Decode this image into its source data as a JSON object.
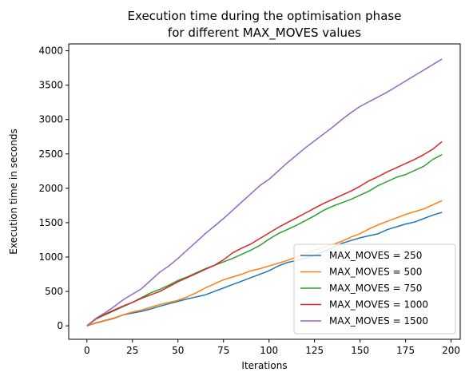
{
  "chart_data": {
    "type": "line",
    "title_lines": [
      "Execution time during the optimisation phase",
      "for different MAX_MOVES values"
    ],
    "xlabel": "Iterations",
    "ylabel": "Execution time in seconds",
    "xlim": [
      -10,
      205
    ],
    "ylim": [
      -196,
      4100
    ],
    "xticks": [
      0,
      25,
      50,
      75,
      100,
      125,
      150,
      175,
      200
    ],
    "yticks": [
      0,
      500,
      1000,
      1500,
      2000,
      2500,
      3000,
      3500,
      4000
    ],
    "grid": false,
    "legend_position": "lower-right",
    "x": [
      0,
      5,
      10,
      15,
      20,
      25,
      30,
      35,
      40,
      45,
      50,
      55,
      60,
      65,
      70,
      75,
      80,
      85,
      90,
      95,
      100,
      105,
      110,
      115,
      120,
      125,
      130,
      135,
      140,
      145,
      150,
      155,
      160,
      165,
      170,
      175,
      180,
      185,
      190,
      195
    ],
    "series": [
      {
        "name": "MAX_MOVES = 250",
        "color": "#1f77b4",
        "values": [
          0,
          40,
          75,
          110,
          160,
          185,
          210,
          245,
          285,
          320,
          355,
          390,
          420,
          450,
          500,
          550,
          600,
          650,
          700,
          750,
          800,
          870,
          920,
          950,
          985,
          1020,
          1080,
          1140,
          1200,
          1240,
          1280,
          1310,
          1340,
          1400,
          1440,
          1480,
          1510,
          1560,
          1610,
          1650
        ]
      },
      {
        "name": "MAX_MOVES = 500",
        "color": "#ff7f0e",
        "values": [
          0,
          45,
          80,
          115,
          160,
          200,
          230,
          270,
          310,
          340,
          370,
          420,
          480,
          550,
          610,
          670,
          710,
          750,
          800,
          830,
          870,
          910,
          950,
          1000,
          1050,
          1100,
          1140,
          1180,
          1230,
          1290,
          1340,
          1410,
          1470,
          1520,
          1570,
          1620,
          1660,
          1700,
          1760,
          1820
        ]
      },
      {
        "name": "MAX_MOVES = 750",
        "color": "#2ca02c",
        "values": [
          0,
          100,
          160,
          220,
          280,
          340,
          410,
          480,
          530,
          590,
          660,
          710,
          770,
          830,
          880,
          930,
          980,
          1040,
          1100,
          1170,
          1260,
          1340,
          1400,
          1460,
          1530,
          1600,
          1680,
          1740,
          1790,
          1840,
          1900,
          1960,
          2040,
          2100,
          2160,
          2200,
          2260,
          2320,
          2420,
          2490
        ]
      },
      {
        "name": "MAX_MOVES = 1000",
        "color": "#d62728",
        "values": [
          0,
          100,
          170,
          230,
          290,
          340,
          400,
          450,
          500,
          570,
          640,
          700,
          760,
          820,
          880,
          960,
          1060,
          1130,
          1190,
          1270,
          1350,
          1430,
          1500,
          1570,
          1640,
          1710,
          1780,
          1840,
          1900,
          1960,
          2030,
          2110,
          2170,
          2240,
          2300,
          2360,
          2420,
          2490,
          2570,
          2680
        ]
      },
      {
        "name": "MAX_MOVES = 1500",
        "color": "#9467bd",
        "values": [
          0,
          110,
          190,
          280,
          380,
          460,
          540,
          660,
          780,
          870,
          980,
          1100,
          1220,
          1340,
          1450,
          1560,
          1680,
          1800,
          1920,
          2040,
          2130,
          2250,
          2370,
          2480,
          2590,
          2690,
          2790,
          2890,
          3000,
          3100,
          3190,
          3260,
          3330,
          3400,
          3480,
          3560,
          3640,
          3720,
          3800,
          3880
        ]
      }
    ]
  }
}
